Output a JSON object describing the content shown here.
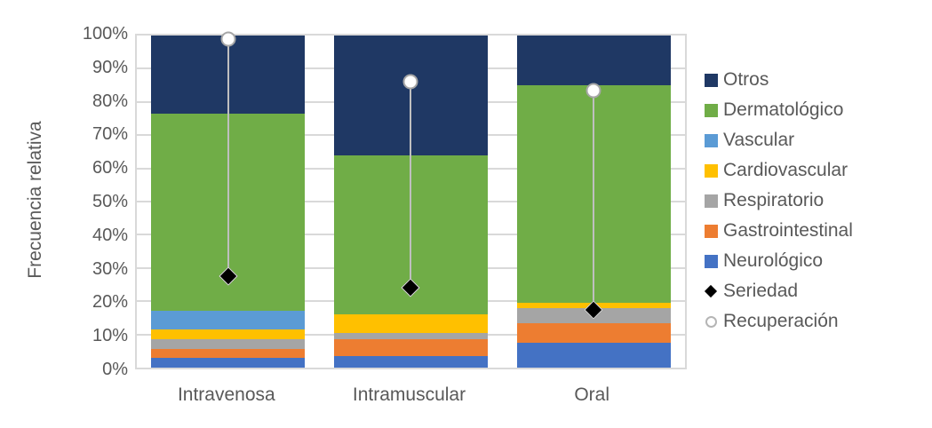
{
  "figure": {
    "background": "#FFFFFF",
    "text_color": "#595959",
    "gridline_color": "#D9D9D9",
    "whisker_color": "#BFBFBF"
  },
  "chart_data": {
    "type": "bar",
    "stacked": true,
    "percent_stacked": true,
    "title": "",
    "xlabel": "",
    "ylabel": "Frecuencia relativa",
    "ylim": [
      0,
      100
    ],
    "y_tick_labels": [
      "0%",
      "10%",
      "20%",
      "30%",
      "40%",
      "50%",
      "60%",
      "70%",
      "80%",
      "90%",
      "100%"
    ],
    "grid": true,
    "legend_position": "right",
    "categories": [
      "Intravenosa",
      "Intramuscular",
      "Oral"
    ],
    "series": [
      {
        "name": "Neurológico",
        "color": "#4472C4",
        "values": [
          3,
          3.5,
          7.5
        ]
      },
      {
        "name": "Gastrointestinal",
        "color": "#ED7D31",
        "values": [
          2.5,
          5,
          6
        ]
      },
      {
        "name": "Respiratorio",
        "color": "#A5A5A5",
        "values": [
          3,
          2,
          4.5
        ]
      },
      {
        "name": "Cardiovascular",
        "color": "#FFC000",
        "values": [
          3,
          5.5,
          1.5
        ]
      },
      {
        "name": "Vascular",
        "color": "#5B9BD5",
        "values": [
          5.5,
          0,
          0
        ]
      },
      {
        "name": "Dermatológico",
        "color": "#70AD47",
        "values": [
          59.5,
          48,
          65.5
        ]
      },
      {
        "name": "Otros",
        "color": "#1F3864",
        "values": [
          23.5,
          36,
          15
        ]
      }
    ],
    "marker_series": [
      {
        "name": "Seriedad",
        "marker": "diamond",
        "color": "#000000",
        "values": [
          27.5,
          24,
          17.5
        ]
      },
      {
        "name": "Recuperación",
        "marker": "open-circle",
        "color": "#FFFFFF",
        "values": [
          99,
          86,
          83.5
        ]
      }
    ],
    "legend": [
      {
        "label": "Otros",
        "swatch": "square",
        "color": "#1F3864"
      },
      {
        "label": "Dermatológico",
        "swatch": "square",
        "color": "#70AD47"
      },
      {
        "label": "Vascular",
        "swatch": "square",
        "color": "#5B9BD5"
      },
      {
        "label": "Cardiovascular",
        "swatch": "square",
        "color": "#FFC000"
      },
      {
        "label": "Respiratorio",
        "swatch": "square",
        "color": "#A5A5A5"
      },
      {
        "label": "Gastrointestinal",
        "swatch": "square",
        "color": "#ED7D31"
      },
      {
        "label": "Neurológico",
        "swatch": "square",
        "color": "#4472C4"
      },
      {
        "label": "Seriedad",
        "swatch": "diamond",
        "color": "#000000"
      },
      {
        "label": "Recuperación",
        "swatch": "open-circle",
        "color": "#FFFFFF"
      }
    ]
  }
}
